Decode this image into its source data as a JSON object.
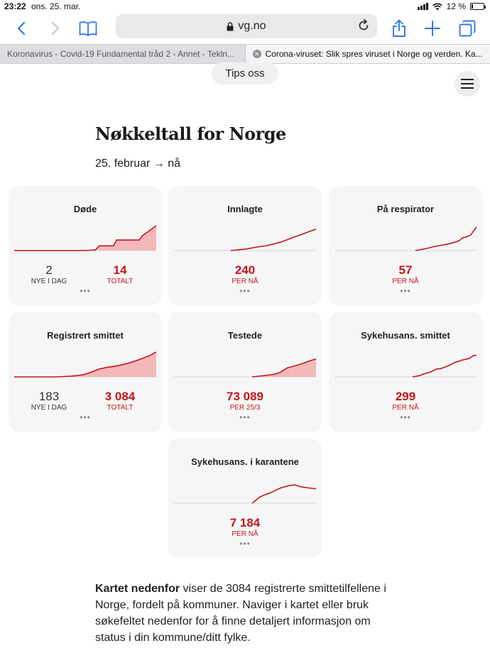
{
  "status": {
    "time": "23:22",
    "date": "ons. 25. mar.",
    "battery": "12 %"
  },
  "toolbar": {
    "url": "vg.no",
    "icons": [
      "back-icon",
      "forward-icon",
      "bookmarks-icon",
      "lock-icon",
      "reload-icon",
      "share-icon",
      "new-tab-icon",
      "tabs-icon"
    ]
  },
  "tabs": [
    {
      "title": "Koronavirus - Covid-19 Fundamental tråd 2 - Annet - Tekln..."
    },
    {
      "title": "Corona-viruset: Slik spres viruset i Norge og verden. Ka..."
    }
  ],
  "page": {
    "tips_label": "Tips oss",
    "heading": "Nøkkeltall for Norge",
    "range": "25. februar → nå",
    "paragraph_bold": "Kartet nedenfor",
    "paragraph_rest": " viser de 3084 registrerte smittetilfellene i Norge, fordelt på kommuner. Naviger i kartet eller bruk søkefeltet nedenfor for å finne detaljert informasjon om status i din kommune/ditt fylke."
  },
  "colors": {
    "accent": "#c4161c",
    "fill": "#f2b8ba",
    "card_bg": "#f6f6f6"
  },
  "cards": [
    {
      "title": "Døde",
      "secondary_value": "2",
      "secondary_label": "NYE I DAG",
      "value": "14",
      "label": "TOTALT"
    },
    {
      "title": "Innlagte",
      "value": "240",
      "label": "PER NÅ"
    },
    {
      "title": "På respirator",
      "value": "57",
      "label": "PER NÅ"
    },
    {
      "title": "Registrert smittet",
      "secondary_value": "183",
      "secondary_label": "NYE I DAG",
      "value": "3 084",
      "label": "TOTALT"
    },
    {
      "title": "Testede",
      "value": "73 089",
      "label": "PER 25/3"
    },
    {
      "title": "Sykehusans. smittet",
      "value": "299",
      "label": "PER NÅ"
    },
    {
      "title": "Sykehusans. i karantene",
      "value": "7 184",
      "label": "PER NÅ"
    }
  ],
  "chart_data": [
    {
      "type": "area",
      "title": "Døde",
      "x_range": [
        0,
        100
      ],
      "y_range": [
        0,
        100
      ],
      "x": [
        0,
        50,
        55,
        57,
        60,
        65,
        70,
        72,
        75,
        80,
        85,
        88,
        90,
        95,
        100
      ],
      "values": [
        0,
        0,
        2,
        2,
        18,
        18,
        18,
        40,
        40,
        40,
        40,
        40,
        55,
        75,
        95
      ]
    },
    {
      "type": "line",
      "title": "Innlagte",
      "x_range": [
        0,
        100
      ],
      "y_range": [
        0,
        100
      ],
      "x": [
        40,
        50,
        55,
        60,
        65,
        70,
        75,
        80,
        85,
        90,
        95,
        100
      ],
      "values": [
        0,
        5,
        10,
        15,
        18,
        25,
        32,
        42,
        52,
        62,
        72,
        82
      ]
    },
    {
      "type": "line",
      "title": "På respirator",
      "x_range": [
        0,
        100
      ],
      "y_range": [
        0,
        100
      ],
      "x": [
        57,
        65,
        70,
        75,
        80,
        85,
        88,
        90,
        93,
        96,
        100
      ],
      "values": [
        0,
        8,
        15,
        20,
        25,
        32,
        38,
        48,
        52,
        60,
        90
      ]
    },
    {
      "type": "area",
      "title": "Registrert smittet",
      "x_range": [
        0,
        100
      ],
      "y_range": [
        0,
        100
      ],
      "x": [
        0,
        30,
        40,
        45,
        50,
        55,
        60,
        65,
        70,
        75,
        80,
        85,
        90,
        95,
        100
      ],
      "values": [
        0,
        0,
        3,
        5,
        10,
        20,
        30,
        36,
        40,
        45,
        52,
        60,
        70,
        80,
        95
      ]
    },
    {
      "type": "area",
      "title": "Testede",
      "x_range": [
        0,
        100
      ],
      "y_range": [
        0,
        100
      ],
      "x": [
        55,
        62,
        68,
        72,
        75,
        78,
        80,
        85,
        90,
        95,
        98,
        100
      ],
      "values": [
        0,
        4,
        8,
        12,
        18,
        28,
        35,
        42,
        50,
        60,
        65,
        68
      ]
    },
    {
      "type": "line",
      "title": "Sykehusans. smittet",
      "x_range": [
        0,
        100
      ],
      "y_range": [
        0,
        100
      ],
      "x": [
        55,
        60,
        63,
        65,
        68,
        70,
        72,
        75,
        78,
        80,
        83,
        85,
        88,
        90,
        93,
        95,
        98,
        100
      ],
      "values": [
        0,
        5,
        12,
        14,
        20,
        25,
        30,
        32,
        38,
        42,
        50,
        56,
        60,
        64,
        68,
        70,
        82,
        82
      ]
    },
    {
      "type": "line",
      "title": "Sykehusans. i karantene",
      "x_range": [
        0,
        100
      ],
      "y_range": [
        0,
        100
      ],
      "x": [
        55,
        60,
        63,
        67,
        70,
        75,
        80,
        85,
        90,
        95,
        100
      ],
      "values": [
        0,
        22,
        30,
        38,
        45,
        58,
        66,
        70,
        62,
        58,
        55
      ]
    }
  ]
}
